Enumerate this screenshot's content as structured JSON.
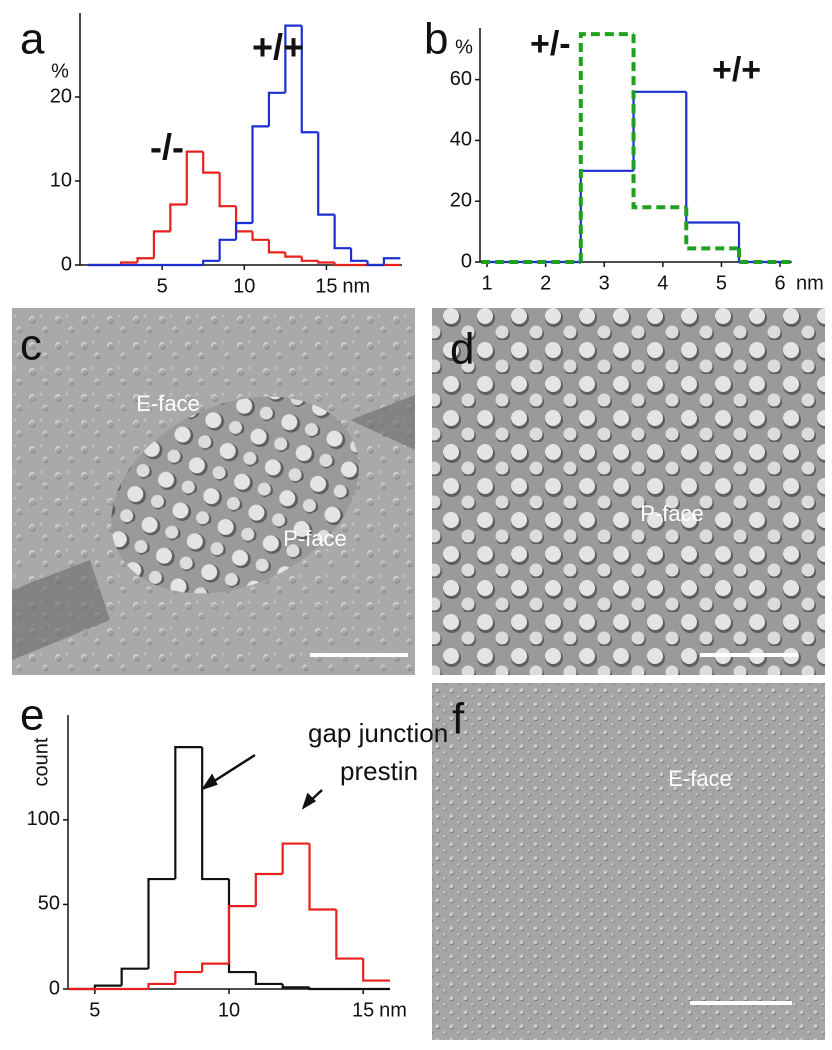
{
  "chart_data": [
    {
      "type": "histogram",
      "panel": "a",
      "y_unit": "%",
      "x_unit": "nm",
      "bins": [
        0.5,
        1.5,
        2.5,
        3.5,
        4.5,
        5.5,
        6.5,
        7.5,
        8.5,
        9.5,
        10.5,
        11.5,
        12.5,
        13.5,
        14.5,
        15.5,
        16.5,
        17.5,
        18.5,
        19.5
      ],
      "series": [
        {
          "color": "#e8201c",
          "values": [
            0,
            0,
            0.3,
            0.8,
            4,
            7.2,
            13.5,
            11,
            7,
            4,
            3,
            1.5,
            1,
            0.5,
            0.3,
            0,
            0,
            0,
            0
          ]
        },
        {
          "color": "#1c2fd0",
          "values": [
            0,
            0,
            0,
            0,
            0,
            0,
            0,
            0.5,
            3,
            5,
            16.5,
            20.5,
            28.5,
            15.8,
            6,
            2,
            0.5,
            0,
            0.8
          ]
        }
      ],
      "annotations": [
        "-/-",
        "+/+"
      ],
      "xlim": [
        0,
        19.6
      ],
      "xticks": [
        5,
        10,
        15
      ],
      "ylim": [
        0,
        30
      ],
      "yticks": [
        0,
        10,
        20
      ]
    },
    {
      "type": "histogram",
      "panel": "b",
      "y_unit": "%",
      "x_unit": "nm",
      "bins": [
        0.9,
        2.6,
        3.5,
        4.4,
        5.3,
        6.2
      ],
      "series": [
        {
          "color": "#1c2fd0",
          "values": [
            0,
            30,
            56,
            13,
            0
          ]
        },
        {
          "color": "#1fa01f",
          "dashed": true,
          "values": [
            0,
            75,
            18,
            4.5,
            0
          ]
        }
      ],
      "annotations": [
        "+/-",
        "+/+"
      ],
      "xlim": [
        0.88,
        6.17
      ],
      "xticks": [
        1,
        2,
        3,
        4,
        5,
        6
      ],
      "ylim": [
        0,
        77
      ],
      "yticks": [
        0,
        20,
        40,
        60
      ]
    },
    {
      "type": "histogram",
      "panel": "e",
      "y_unit": "count",
      "x_unit": "nm",
      "bins": [
        4,
        5,
        6,
        7,
        8,
        9,
        10,
        11,
        12,
        13,
        14,
        15,
        16
      ],
      "series": [
        {
          "color": "#111111",
          "values": [
            0,
            2,
            12,
            65,
            143,
            65,
            10,
            3,
            1,
            0,
            0,
            0
          ]
        },
        {
          "color": "#e8201c",
          "values": [
            0,
            0,
            0,
            3,
            10,
            15,
            49,
            68,
            86,
            47,
            18,
            5
          ]
        }
      ],
      "annotations": [
        "gap junction",
        "prestin"
      ],
      "xlim": [
        4,
        16
      ],
      "xticks": [
        5,
        10,
        15
      ],
      "ylim": [
        0,
        162
      ],
      "yticks": [
        0,
        50,
        100
      ]
    }
  ],
  "images": [
    {
      "panel": "c",
      "labels": [
        "E-face",
        "P-face"
      ]
    },
    {
      "panel": "d",
      "labels": [
        "P-face"
      ]
    },
    {
      "panel": "f",
      "labels": [
        "E-face"
      ]
    }
  ]
}
